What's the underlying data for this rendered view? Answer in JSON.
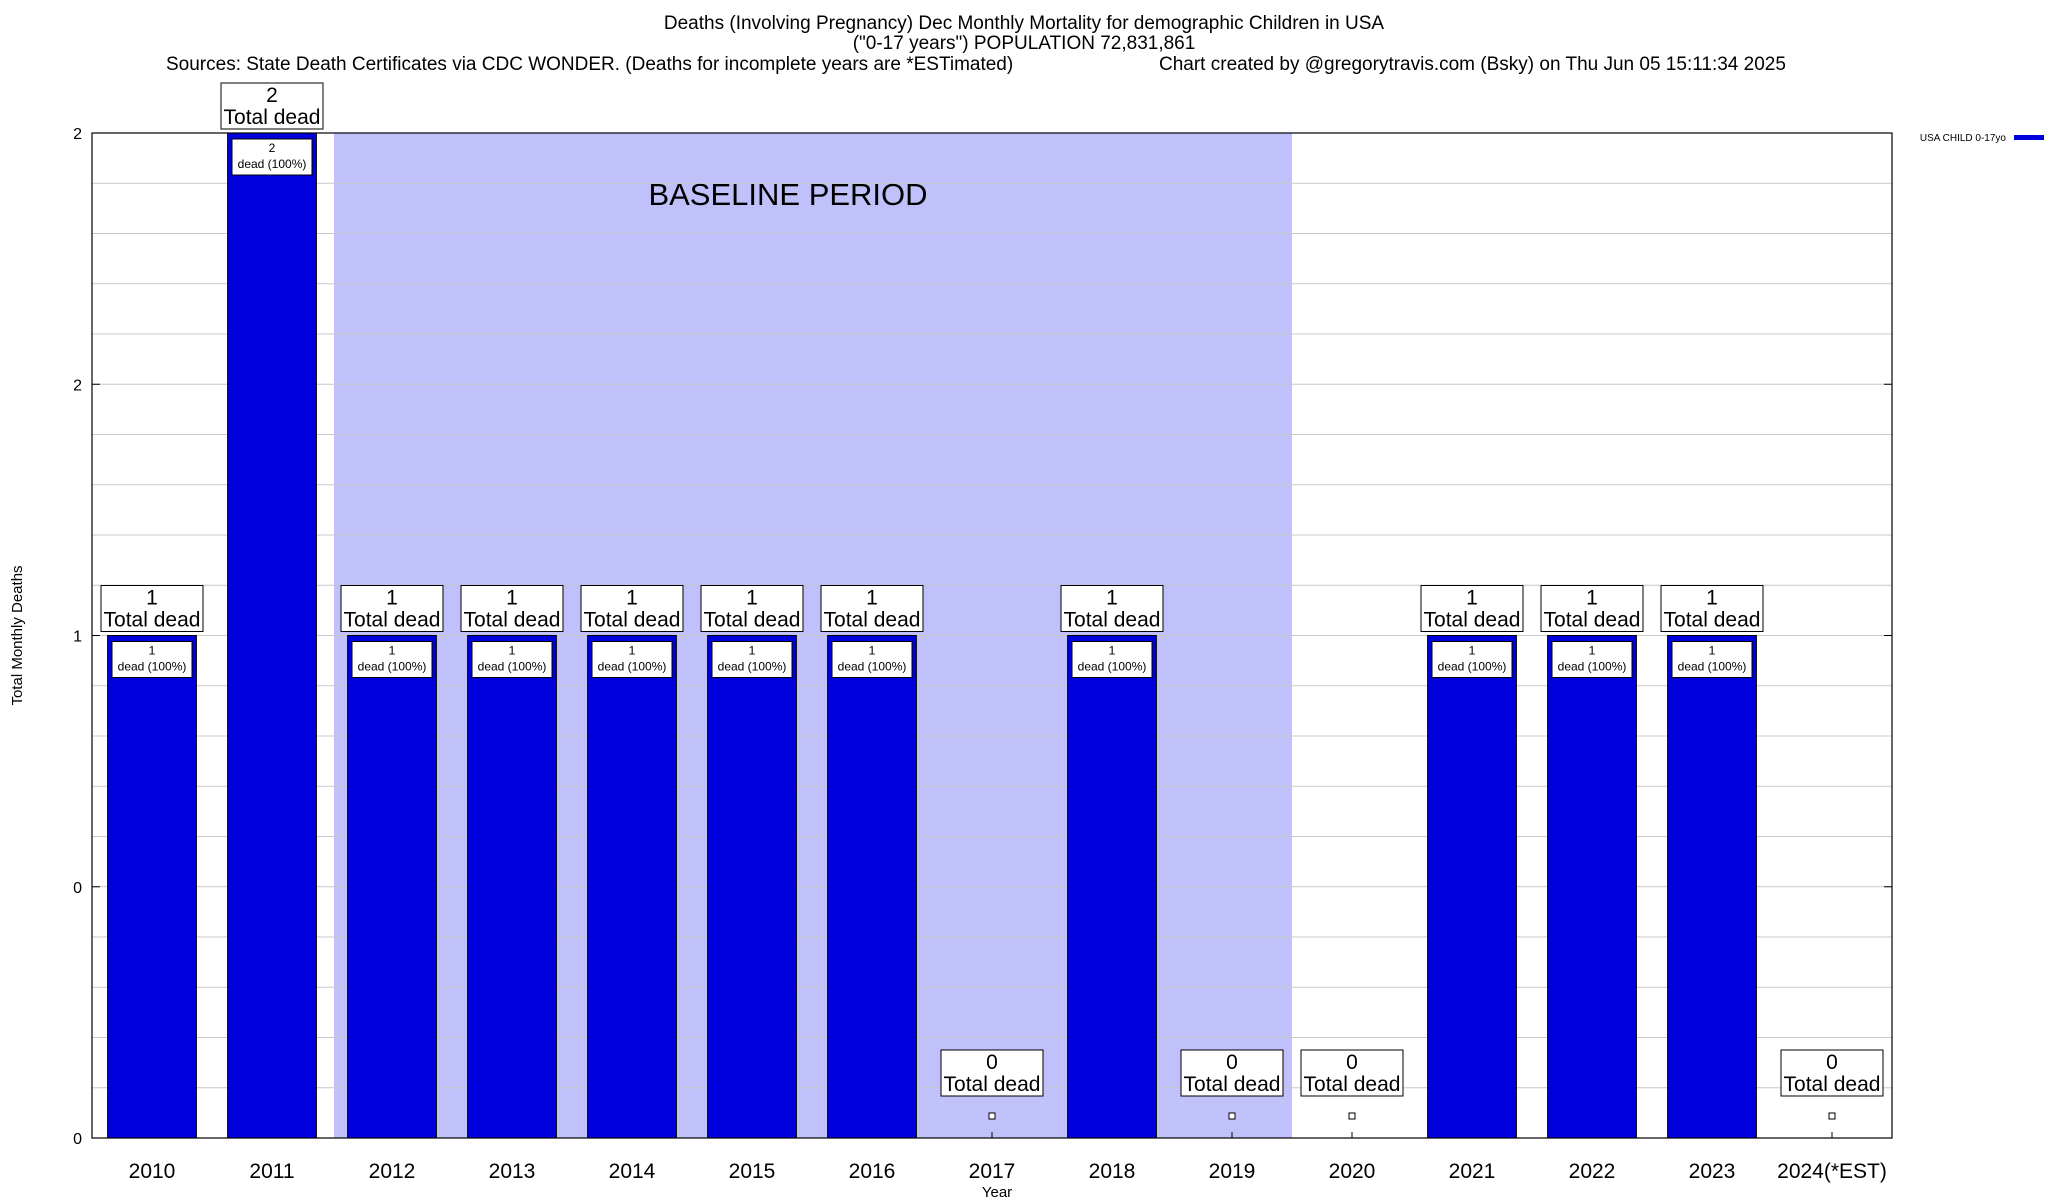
{
  "chart_data": {
    "type": "bar",
    "title": "Deaths (Involving Pregnancy) Dec Monthly Mortality for demographic Children in USA",
    "subtitle": "(\"0-17 years\") POPULATION 72,831,861",
    "sources": "Sources: State Death Certificates via CDC WONDER. (Deaths for incomplete years are *ESTimated)",
    "credit": "Chart created by @gregorytravis.com (Bsky) on Thu Jun 05 15:11:34 2025",
    "xlabel": "Year",
    "ylabel": "Total Monthly Deaths",
    "categories": [
      "2010",
      "2011",
      "2012",
      "2013",
      "2014",
      "2015",
      "2016",
      "2017",
      "2018",
      "2019",
      "2020",
      "2021",
      "2022",
      "2023",
      "2024(*EST)"
    ],
    "series": [
      {
        "name": "USA CHILD 0-17yo",
        "color": "#0000dd",
        "values": [
          1,
          2,
          1,
          1,
          1,
          1,
          1,
          0,
          1,
          0,
          0,
          1,
          1,
          1,
          0
        ]
      }
    ],
    "total_label": "Total dead",
    "inner_label": "dead (100%)",
    "ylim": [
      0,
      2
    ],
    "ytick_values": [
      0,
      0.5,
      1,
      1.5,
      2
    ],
    "ytick_labels": [
      "0",
      "0",
      "1",
      "2",
      "2"
    ],
    "grid": true,
    "baseline": {
      "label": "BASELINE PERIOD",
      "from": "2012",
      "to": "2019",
      "color": "#c0c0fa"
    },
    "legend_position": "top-right"
  }
}
